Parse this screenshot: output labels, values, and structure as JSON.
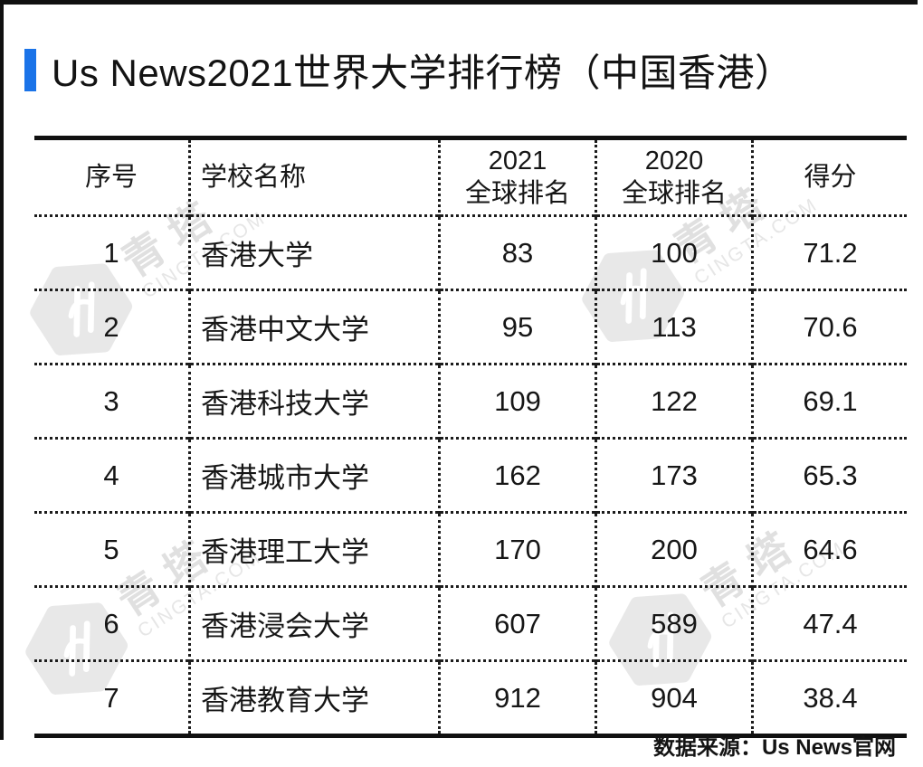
{
  "header": {
    "title": "Us News2021世界大学排行榜（中国香港）"
  },
  "table": {
    "columns": [
      {
        "key": "index",
        "label": "序号"
      },
      {
        "key": "school-name",
        "label": "学校名称"
      },
      {
        "key": "rank-2021",
        "label": "2021\n全球排名"
      },
      {
        "key": "rank-2020",
        "label": "2020\n全球排名"
      },
      {
        "key": "score",
        "label": "得分"
      }
    ],
    "rows": [
      [
        "1",
        "香港大学",
        "83",
        "100",
        "71.2"
      ],
      [
        "2",
        "香港中文大学",
        "95",
        "113",
        "70.6"
      ],
      [
        "3",
        "香港科技大学",
        "109",
        "122",
        "69.1"
      ],
      [
        "4",
        "香港城市大学",
        "162",
        "173",
        "65.3"
      ],
      [
        "5",
        "香港理工大学",
        "170",
        "200",
        "64.6"
      ],
      [
        "6",
        "香港浸会大学",
        "607",
        "589",
        "47.4"
      ],
      [
        "7",
        "香港教育大学",
        "912",
        "904",
        "38.4"
      ]
    ]
  },
  "footer": {
    "text": "数据来源：Us News官网"
  },
  "watermark": {
    "logo_name": "cingta-hexagon-logo",
    "text_cn": "青塔",
    "text_en": "CINGTA.COM"
  },
  "colors": {
    "accent": "#1a73e8",
    "border": "#101010",
    "watermark_gray": "#e5e5e5"
  },
  "chart_data": {
    "type": "table",
    "title": "Us News2021世界大学排行榜（中国香港）",
    "columns": [
      "序号",
      "学校名称",
      "2021全球排名",
      "2020全球排名",
      "得分"
    ],
    "rows": [
      [
        1,
        "香港大学",
        83,
        100,
        71.2
      ],
      [
        2,
        "香港中文大学",
        95,
        113,
        70.6
      ],
      [
        3,
        "香港科技大学",
        109,
        122,
        69.1
      ],
      [
        4,
        "香港城市大学",
        162,
        173,
        65.3
      ],
      [
        5,
        "香港理工大学",
        170,
        200,
        64.6
      ],
      [
        6,
        "香港浸会大学",
        607,
        589,
        47.4
      ],
      [
        7,
        "香港教育大学",
        912,
        904,
        38.4
      ]
    ],
    "source": "数据来源：Us News官网"
  }
}
